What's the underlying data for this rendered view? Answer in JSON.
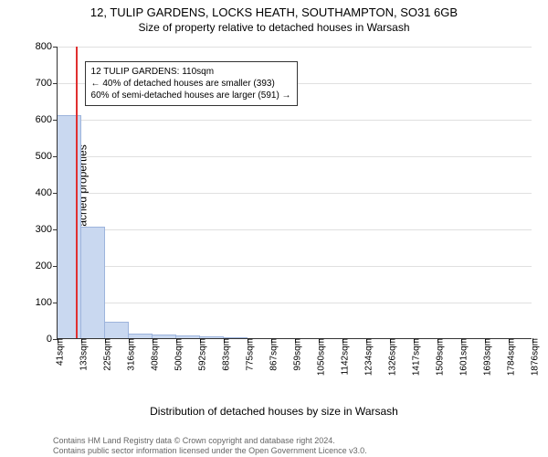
{
  "title": "12, TULIP GARDENS, LOCKS HEATH, SOUTHAMPTON, SO31 6GB",
  "subtitle": "Size of property relative to detached houses in Warsash",
  "ylabel": "Number of detached properties",
  "xlabel": "Distribution of detached houses by size in Warsash",
  "chart": {
    "type": "bar",
    "background_color": "#ffffff",
    "grid_color": "#e0e0e0",
    "axis_color": "#333333",
    "bar_color": "#c9d8f0",
    "bar_border": "#9db4dc",
    "marker_color": "#e03030",
    "ylim": [
      0,
      800
    ],
    "ytick_step": 100,
    "x_start": 41,
    "x_bin_width": 92,
    "x_ticks": [
      41,
      133,
      225,
      316,
      408,
      500,
      592,
      683,
      775,
      867,
      959,
      1050,
      1142,
      1234,
      1326,
      1417,
      1509,
      1601,
      1693,
      1784,
      1876
    ],
    "x_tick_unit": "sqm",
    "bar_values": [
      610,
      305,
      45,
      12,
      10,
      8,
      6,
      3,
      0,
      0,
      0,
      0,
      0,
      0,
      0,
      0,
      0,
      0,
      0,
      0
    ],
    "marker_x": 110,
    "title_fontsize": 13,
    "label_fontsize": 12,
    "tick_fontsize": 10
  },
  "annotation": {
    "line1": "12 TULIP GARDENS: 110sqm",
    "line2": "← 40% of detached houses are smaller (393)",
    "line3": "60% of semi-detached houses are larger (591) →"
  },
  "footer": {
    "line1": "Contains HM Land Registry data © Crown copyright and database right 2024.",
    "line2": "Contains public sector information licensed under the Open Government Licence v3.0."
  }
}
